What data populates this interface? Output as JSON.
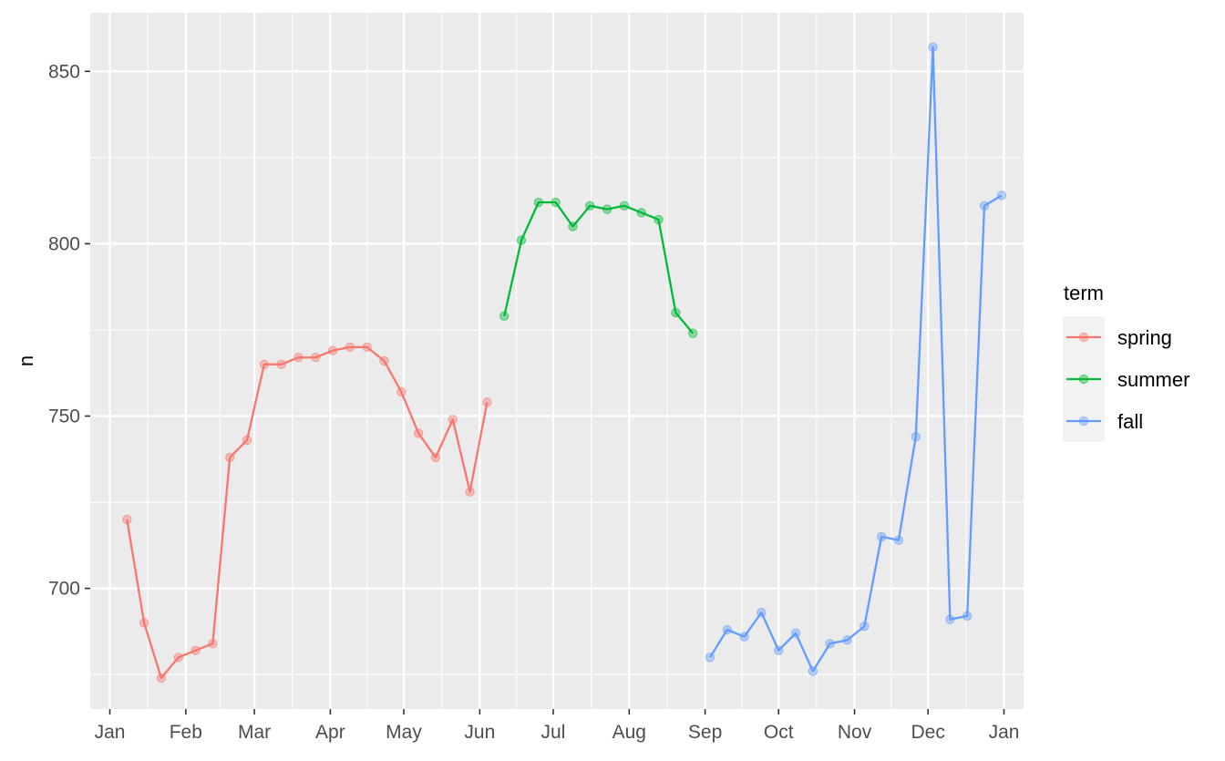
{
  "chart_data": {
    "type": "line",
    "xlabel": "",
    "ylabel": "n",
    "x_tick_labels": [
      "Jan",
      "Feb",
      "Mar",
      "Apr",
      "May",
      "Jun",
      "Jul",
      "Aug",
      "Sep",
      "Oct",
      "Nov",
      "Dec",
      "Jan"
    ],
    "y_ticks": [
      700,
      750,
      800,
      850
    ],
    "ylim": [
      665,
      867
    ],
    "xlim": [
      "2017-12-24",
      "2019-01-09"
    ],
    "grid": true,
    "legend": {
      "title": "term",
      "placement": "right"
    },
    "series": [
      {
        "name": "spring",
        "color": "#F8766D",
        "points": [
          {
            "x": "2018-01-08",
            "y": 720
          },
          {
            "x": "2018-01-15",
            "y": 690
          },
          {
            "x": "2018-01-22",
            "y": 674
          },
          {
            "x": "2018-01-29",
            "y": 680
          },
          {
            "x": "2018-02-05",
            "y": 682
          },
          {
            "x": "2018-02-12",
            "y": 684
          },
          {
            "x": "2018-02-19",
            "y": 738
          },
          {
            "x": "2018-02-26",
            "y": 743
          },
          {
            "x": "2018-03-05",
            "y": 765
          },
          {
            "x": "2018-03-12",
            "y": 765
          },
          {
            "x": "2018-03-19",
            "y": 767
          },
          {
            "x": "2018-03-26",
            "y": 767
          },
          {
            "x": "2018-04-02",
            "y": 769
          },
          {
            "x": "2018-04-09",
            "y": 770
          },
          {
            "x": "2018-04-16",
            "y": 770
          },
          {
            "x": "2018-04-23",
            "y": 766
          },
          {
            "x": "2018-04-30",
            "y": 757
          },
          {
            "x": "2018-05-07",
            "y": 745
          },
          {
            "x": "2018-05-14",
            "y": 738
          },
          {
            "x": "2018-05-21",
            "y": 749
          },
          {
            "x": "2018-05-28",
            "y": 728
          },
          {
            "x": "2018-06-04",
            "y": 754
          }
        ]
      },
      {
        "name": "summer",
        "color": "#00BA38",
        "points": [
          {
            "x": "2018-06-11",
            "y": 779
          },
          {
            "x": "2018-06-18",
            "y": 801
          },
          {
            "x": "2018-06-25",
            "y": 812
          },
          {
            "x": "2018-07-02",
            "y": 812
          },
          {
            "x": "2018-07-09",
            "y": 805
          },
          {
            "x": "2018-07-16",
            "y": 811
          },
          {
            "x": "2018-07-23",
            "y": 810
          },
          {
            "x": "2018-07-30",
            "y": 811
          },
          {
            "x": "2018-08-06",
            "y": 809
          },
          {
            "x": "2018-08-13",
            "y": 807
          },
          {
            "x": "2018-08-20",
            "y": 780
          },
          {
            "x": "2018-08-27",
            "y": 774
          }
        ]
      },
      {
        "name": "fall",
        "color": "#619CFF",
        "points": [
          {
            "x": "2018-09-03",
            "y": 680
          },
          {
            "x": "2018-09-10",
            "y": 688
          },
          {
            "x": "2018-09-17",
            "y": 686
          },
          {
            "x": "2018-09-24",
            "y": 693
          },
          {
            "x": "2018-10-01",
            "y": 682
          },
          {
            "x": "2018-10-08",
            "y": 687
          },
          {
            "x": "2018-10-15",
            "y": 676
          },
          {
            "x": "2018-10-22",
            "y": 684
          },
          {
            "x": "2018-10-29",
            "y": 685
          },
          {
            "x": "2018-11-05",
            "y": 689
          },
          {
            "x": "2018-11-12",
            "y": 715
          },
          {
            "x": "2018-11-19",
            "y": 714
          },
          {
            "x": "2018-11-26",
            "y": 744
          },
          {
            "x": "2018-12-03",
            "y": 857
          },
          {
            "x": "2018-12-10",
            "y": 691
          },
          {
            "x": "2018-12-17",
            "y": 692
          },
          {
            "x": "2018-12-24",
            "y": 811
          },
          {
            "x": "2018-12-31",
            "y": 814
          }
        ]
      }
    ]
  }
}
